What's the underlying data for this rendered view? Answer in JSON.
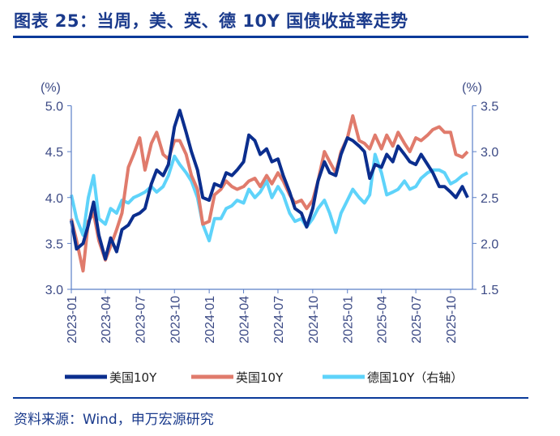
{
  "header": {
    "title": "图表 25：当周，美、英、德 10Y 国债收益率走势"
  },
  "footer": {
    "source": "资料来源：Wind，申万宏源研究"
  },
  "chart_data": {
    "type": "line",
    "title": "图表 25：当周，美、英、德 10Y 国债收益率走势",
    "left_axis": {
      "unit_label": "(%)",
      "ylim": [
        3.0,
        5.0
      ],
      "ticks": [
        "3.0",
        "3.5",
        "4.0",
        "4.5",
        "5.0"
      ]
    },
    "right_axis": {
      "unit_label": "(%)",
      "ylim": [
        1.5,
        3.5
      ],
      "ticks": [
        "1.5",
        "2.0",
        "2.5",
        "3.0",
        "3.5"
      ]
    },
    "x_ticks": [
      "2023-01",
      "2023-04",
      "2023-07",
      "2023-10",
      "2024-01",
      "2024-04",
      "2024-07",
      "2024-10",
      "2025-01",
      "2025-04",
      "2025-07",
      "2025-10"
    ],
    "grid": false,
    "legend_position": "bottom",
    "x": [
      "2023-01-01",
      "2023-01-15",
      "2023-02-01",
      "2023-02-15",
      "2023-03-01",
      "2023-03-15",
      "2023-04-01",
      "2023-04-15",
      "2023-05-01",
      "2023-05-15",
      "2023-06-01",
      "2023-06-15",
      "2023-07-01",
      "2023-07-15",
      "2023-08-01",
      "2023-08-15",
      "2023-09-01",
      "2023-09-15",
      "2023-10-01",
      "2023-10-15",
      "2023-11-01",
      "2023-11-15",
      "2023-12-01",
      "2023-12-15",
      "2024-01-01",
      "2024-01-15",
      "2024-02-01",
      "2024-02-15",
      "2024-03-01",
      "2024-03-15",
      "2024-04-01",
      "2024-04-15",
      "2024-05-01",
      "2024-05-15",
      "2024-06-01",
      "2024-06-15",
      "2024-07-01",
      "2024-07-15",
      "2024-08-01",
      "2024-08-15",
      "2024-09-01",
      "2024-09-15",
      "2024-10-01",
      "2024-10-15",
      "2024-11-01",
      "2024-11-15",
      "2024-12-01",
      "2024-12-15",
      "2025-01-01",
      "2025-01-15",
      "2025-02-01",
      "2025-02-15",
      "2025-03-01",
      "2025-03-15",
      "2025-04-01",
      "2025-04-15",
      "2025-05-01",
      "2025-05-15",
      "2025-06-01",
      "2025-06-15",
      "2025-07-01",
      "2025-07-15",
      "2025-08-01",
      "2025-08-15",
      "2025-09-01",
      "2025-09-15",
      "2025-10-01",
      "2025-10-15",
      "2025-11-01",
      "2025-11-15"
    ],
    "series": [
      {
        "name": "美国10Y",
        "axis": "left",
        "color": "#0b2e8e",
        "values": [
          3.75,
          3.44,
          3.5,
          3.7,
          3.95,
          3.59,
          3.33,
          3.56,
          3.41,
          3.65,
          3.7,
          3.8,
          3.83,
          3.88,
          4.15,
          4.3,
          4.24,
          4.36,
          4.77,
          4.95,
          4.71,
          4.5,
          4.3,
          4.0,
          3.97,
          4.15,
          4.12,
          4.27,
          4.24,
          4.3,
          4.39,
          4.68,
          4.62,
          4.47,
          4.53,
          4.39,
          4.42,
          4.24,
          4.06,
          3.88,
          3.83,
          3.68,
          3.88,
          4.18,
          4.39,
          4.27,
          4.24,
          4.47,
          4.65,
          4.62,
          4.56,
          4.5,
          4.21,
          4.36,
          4.33,
          4.47,
          4.39,
          4.56,
          4.47,
          4.39,
          4.36,
          4.47,
          4.36,
          4.27,
          4.12,
          4.12,
          4.06,
          4.0,
          4.12,
          4.0
        ]
      },
      {
        "name": "英国10Y",
        "axis": "left",
        "color": "#e07b6c",
        "values": [
          3.77,
          3.53,
          3.2,
          3.74,
          3.83,
          3.53,
          3.32,
          3.47,
          3.65,
          3.83,
          4.33,
          4.47,
          4.65,
          4.3,
          4.59,
          4.71,
          4.47,
          4.42,
          4.62,
          4.62,
          4.47,
          4.24,
          4.09,
          3.71,
          3.74,
          4.03,
          4.09,
          4.18,
          4.12,
          4.09,
          4.12,
          4.18,
          4.21,
          4.12,
          4.24,
          4.15,
          4.27,
          4.18,
          4.03,
          3.94,
          3.97,
          3.88,
          3.97,
          4.18,
          4.5,
          4.39,
          4.27,
          4.5,
          4.65,
          4.89,
          4.62,
          4.59,
          4.53,
          4.68,
          4.53,
          4.68,
          4.56,
          4.71,
          4.59,
          4.5,
          4.65,
          4.62,
          4.68,
          4.74,
          4.77,
          4.71,
          4.71,
          4.47,
          4.44,
          4.5
        ]
      },
      {
        "name": "德国10Y（右轴）",
        "axis": "right",
        "color": "#5ed3fa",
        "values": [
          2.53,
          2.27,
          2.09,
          2.5,
          2.74,
          2.27,
          2.21,
          2.38,
          2.33,
          2.47,
          2.44,
          2.5,
          2.53,
          2.56,
          2.62,
          2.56,
          2.62,
          2.74,
          2.95,
          2.86,
          2.77,
          2.68,
          2.5,
          2.21,
          2.03,
          2.27,
          2.27,
          2.38,
          2.41,
          2.47,
          2.44,
          2.59,
          2.5,
          2.56,
          2.68,
          2.5,
          2.62,
          2.53,
          2.33,
          2.24,
          2.27,
          2.18,
          2.27,
          2.38,
          2.47,
          2.33,
          2.12,
          2.33,
          2.47,
          2.59,
          2.5,
          2.44,
          2.53,
          2.97,
          2.77,
          2.53,
          2.56,
          2.59,
          2.68,
          2.59,
          2.62,
          2.71,
          2.77,
          2.8,
          2.8,
          2.77,
          2.65,
          2.68,
          2.74,
          2.77
        ]
      }
    ]
  }
}
